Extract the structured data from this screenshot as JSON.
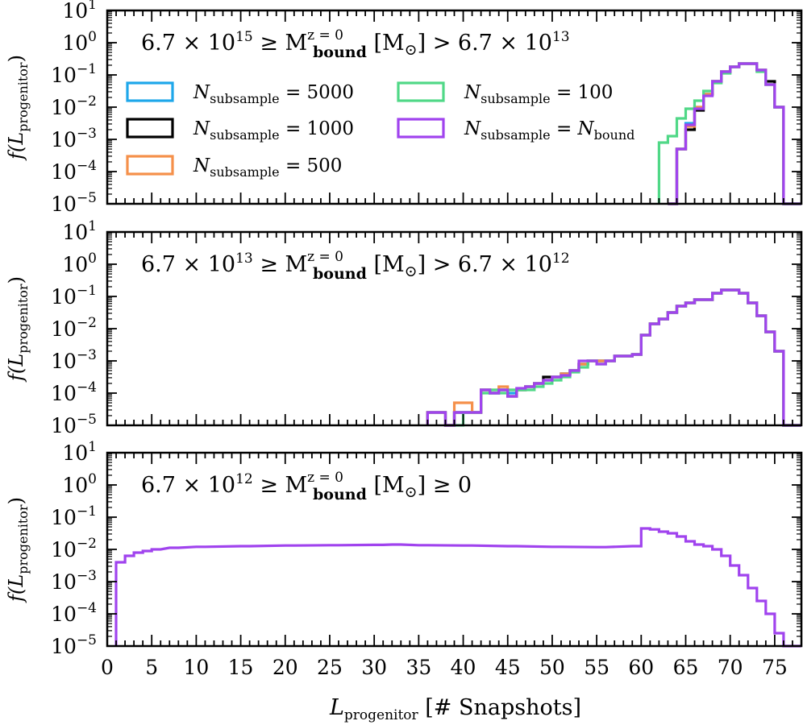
{
  "chart_data": {
    "type": "step-histogram",
    "xlabel": {
      "main": "L",
      "sub": "progenitor",
      "suffix": " [# Snapshots]"
    },
    "ylabel": {
      "pre": "f(L",
      "sub": "progenitor",
      "post": ")"
    },
    "xlim": [
      0,
      78
    ],
    "xticks": [
      0,
      5,
      10,
      15,
      20,
      25,
      30,
      35,
      40,
      45,
      50,
      55,
      60,
      65,
      70,
      75
    ],
    "ylim_log10": [
      -5,
      1
    ],
    "yticks": [
      {
        "base": "10",
        "exp": "1"
      },
      {
        "base": "10",
        "exp": "0"
      },
      {
        "base": "10",
        "exp": "−1"
      },
      {
        "base": "10",
        "exp": "−2"
      },
      {
        "base": "10",
        "exp": "−3"
      },
      {
        "base": "10",
        "exp": "−4"
      },
      {
        "base": "10",
        "exp": "−5"
      }
    ],
    "legend": [
      {
        "name": "5000",
        "color": "#1ea7ea"
      },
      {
        "name": "1000",
        "color": "#000000"
      },
      {
        "name": "500",
        "color": "#f5904a"
      },
      {
        "name": "100",
        "color": "#50d887"
      },
      {
        "name": "bound",
        "color": "#a043ee"
      }
    ],
    "legend_label": {
      "pre": "N",
      "sub": "subsample",
      "eq": " = ",
      "last_pre": "N",
      "last_sub": "bound"
    },
    "panels": [
      {
        "title": {
          "left": "6.7 × 10",
          "left_exp": "15",
          "mid": " ≥ M",
          "mid_sup": "z = 0",
          "mid_sub": "bound",
          "unit": " [M",
          "sun": "⊙",
          "unit_close": "]",
          "right": " > 6.7 × 10",
          "right_exp": "13"
        },
        "series": [
          {
            "name": "5000",
            "color": "#1ea7ea",
            "x": [
              63,
              64,
              65,
              66,
              67,
              68,
              69,
              70,
              71,
              72,
              73,
              74,
              75,
              76,
              77
            ],
            "log10": [
              -5,
              -3.3,
              -2.5,
              -2.0,
              -1.6,
              -1.2,
              -0.9,
              -0.75,
              -0.65,
              -0.65,
              -0.85,
              -1.3,
              -2.0,
              -5,
              -5
            ]
          },
          {
            "name": "1000",
            "color": "#000000",
            "x": [
              63,
              64,
              65,
              66,
              67,
              68,
              69,
              70,
              71,
              72,
              73,
              74,
              75,
              76,
              77
            ],
            "log10": [
              -5,
              -3.3,
              -2.7,
              -2.1,
              -1.6,
              -1.2,
              -0.9,
              -0.75,
              -0.65,
              -0.65,
              -0.85,
              -1.2,
              -2.0,
              -5,
              -5
            ]
          },
          {
            "name": "500",
            "color": "#f5904a",
            "x": [
              63,
              64,
              65,
              66,
              67,
              68,
              69,
              70,
              71,
              72,
              73,
              74,
              75,
              76,
              77
            ],
            "log10": [
              -5,
              -3.3,
              -2.6,
              -2.0,
              -1.6,
              -1.2,
              -0.9,
              -0.75,
              -0.65,
              -0.65,
              -0.85,
              -1.3,
              -2.0,
              -5,
              -5
            ]
          },
          {
            "name": "100",
            "color": "#50d887",
            "x": [
              62,
              63,
              64,
              65,
              66,
              67,
              68,
              69,
              70,
              71,
              72,
              73,
              74,
              75,
              76,
              77
            ],
            "log10": [
              -3.1,
              -2.9,
              -2.35,
              -2.05,
              -1.8,
              -1.5,
              -1.25,
              -0.95,
              -0.75,
              -0.65,
              -0.65,
              -0.9,
              -1.3,
              -2.0,
              -5,
              -5
            ]
          },
          {
            "name": "bound",
            "color": "#a043ee",
            "x": [
              63,
              64,
              65,
              66,
              67,
              68,
              69,
              70,
              71,
              72,
              73,
              74,
              75,
              76,
              77
            ],
            "log10": [
              -5,
              -3.3,
              -2.55,
              -2.05,
              -1.65,
              -1.2,
              -0.9,
              -0.75,
              -0.65,
              -0.65,
              -0.85,
              -1.3,
              -2.0,
              -5,
              -5
            ]
          }
        ]
      },
      {
        "title": {
          "left": "6.7 × 10",
          "left_exp": "13",
          "mid": " ≥ M",
          "mid_sup": "z = 0",
          "mid_sub": "bound",
          "unit": " [M",
          "sun": "⊙",
          "unit_close": "]",
          "right": " > 6.7 × 10",
          "right_exp": "12"
        },
        "series": [
          {
            "name": "5000",
            "color": "#1ea7ea",
            "x": [
              36,
              37,
              38,
              39,
              40,
              41,
              42,
              43,
              44,
              45,
              46,
              47,
              48,
              49,
              50,
              51,
              52,
              53,
              54,
              55,
              56,
              57,
              58,
              59,
              60,
              61,
              62,
              63,
              64,
              65,
              66,
              67,
              68,
              69,
              70,
              71,
              72,
              73,
              74,
              75,
              76,
              77
            ],
            "log10": [
              -4.6,
              -4.6,
              -5,
              -4.6,
              -4.6,
              -4.6,
              -3.9,
              -4.0,
              -3.9,
              -4.0,
              -3.9,
              -3.8,
              -3.7,
              -3.6,
              -3.5,
              -3.4,
              -3.3,
              -3.1,
              -3.0,
              -3.0,
              -3.0,
              -2.85,
              -2.85,
              -2.8,
              -2.2,
              -1.85,
              -1.7,
              -1.5,
              -1.3,
              -1.2,
              -1.1,
              -1.1,
              -0.9,
              -0.8,
              -0.8,
              -0.9,
              -1.2,
              -1.6,
              -2.1,
              -2.7,
              -5,
              -5
            ]
          },
          {
            "name": "1000",
            "color": "#000000",
            "x": [
              36,
              37,
              38,
              39,
              40,
              41,
              42,
              43,
              44,
              45,
              46,
              47,
              48,
              49,
              50,
              51,
              52,
              53,
              54,
              55,
              56,
              57,
              58,
              59,
              60,
              61,
              62,
              63,
              64,
              65,
              66,
              67,
              68,
              69,
              70,
              71,
              72,
              73,
              74,
              75,
              76,
              77
            ],
            "log10": [
              -4.6,
              -4.6,
              -5,
              -4.6,
              -4.6,
              -4.6,
              -3.9,
              -4.0,
              -3.9,
              -4.1,
              -3.9,
              -3.8,
              -3.7,
              -3.5,
              -3.5,
              -3.4,
              -3.3,
              -3.1,
              -3.0,
              -3.0,
              -3.0,
              -2.85,
              -2.85,
              -2.8,
              -2.2,
              -1.85,
              -1.7,
              -1.5,
              -1.3,
              -1.2,
              -1.1,
              -1.1,
              -0.9,
              -0.8,
              -0.8,
              -0.9,
              -1.2,
              -1.6,
              -2.1,
              -2.7,
              -5,
              -5
            ]
          },
          {
            "name": "500",
            "color": "#f5904a",
            "x": [
              36,
              37,
              38,
              39,
              40,
              41,
              42,
              43,
              44,
              45,
              46,
              47,
              48,
              49,
              50,
              51,
              52,
              53,
              54,
              55,
              56,
              57,
              58,
              59,
              60,
              61,
              62,
              63,
              64,
              65,
              66,
              67,
              68,
              69,
              70,
              71,
              72,
              73,
              74,
              75,
              76,
              77
            ],
            "log10": [
              -4.6,
              -4.6,
              -5,
              -4.3,
              -4.3,
              -4.6,
              -3.9,
              -3.9,
              -3.8,
              -3.9,
              -3.9,
              -3.8,
              -3.7,
              -3.6,
              -3.5,
              -3.4,
              -3.3,
              -3.1,
              -3.0,
              -3.0,
              -3.0,
              -2.85,
              -2.85,
              -2.8,
              -2.2,
              -1.85,
              -1.7,
              -1.5,
              -1.3,
              -1.2,
              -1.1,
              -1.1,
              -0.9,
              -0.8,
              -0.8,
              -0.9,
              -1.2,
              -1.6,
              -2.1,
              -2.7,
              -5,
              -5
            ]
          },
          {
            "name": "100",
            "color": "#50d887",
            "x": [
              39,
              40,
              41,
              42,
              43,
              44,
              45,
              46,
              47,
              48,
              49,
              50,
              51,
              52,
              53,
              54,
              55,
              56,
              57,
              58,
              59,
              60,
              61,
              62,
              63,
              64,
              65,
              66,
              67,
              68,
              69,
              70,
              71,
              72,
              73,
              74,
              75,
              76,
              77
            ],
            "log10": [
              -5,
              -4.6,
              -4.6,
              -4.0,
              -3.9,
              -4.0,
              -3.9,
              -3.9,
              -3.9,
              -3.8,
              -3.7,
              -3.6,
              -3.5,
              -3.35,
              -3.2,
              -3.0,
              -3.1,
              -3.0,
              -2.85,
              -2.85,
              -2.8,
              -2.2,
              -1.85,
              -1.7,
              -1.5,
              -1.3,
              -1.2,
              -1.1,
              -1.1,
              -0.9,
              -0.8,
              -0.8,
              -0.9,
              -1.2,
              -1.6,
              -2.1,
              -2.7,
              -5,
              -5
            ]
          },
          {
            "name": "bound",
            "color": "#a043ee",
            "x": [
              36,
              37,
              38,
              39,
              40,
              41,
              42,
              43,
              44,
              45,
              46,
              47,
              48,
              49,
              50,
              51,
              52,
              53,
              54,
              55,
              56,
              57,
              58,
              59,
              60,
              61,
              62,
              63,
              64,
              65,
              66,
              67,
              68,
              69,
              70,
              71,
              72,
              73,
              74,
              75,
              76,
              77
            ],
            "log10": [
              -4.6,
              -4.6,
              -5,
              -4.6,
              -4.6,
              -4.6,
              -3.9,
              -4.0,
              -3.9,
              -4.1,
              -3.85,
              -3.8,
              -3.7,
              -3.6,
              -3.5,
              -3.45,
              -3.3,
              -3.0,
              -3.0,
              -3.1,
              -3.0,
              -2.85,
              -2.85,
              -2.8,
              -2.2,
              -1.85,
              -1.7,
              -1.5,
              -1.3,
              -1.2,
              -1.1,
              -1.1,
              -0.9,
              -0.8,
              -0.8,
              -0.9,
              -1.2,
              -1.6,
              -2.1,
              -2.7,
              -5,
              -5
            ]
          }
        ]
      },
      {
        "title": {
          "left": "6.7 × 10",
          "left_exp": "12",
          "mid": " ≥ M",
          "mid_sup": "z = 0",
          "mid_sub": "bound",
          "unit": " [M",
          "sun": "⊙",
          "unit_close": "]",
          "right": " ≥ 0",
          "right_exp": ""
        },
        "series": [
          {
            "name": "bound",
            "color": "#a043ee",
            "x": [
              1,
              2,
              3,
              4,
              5,
              7,
              10,
              15,
              20,
              25,
              30,
              32,
              35,
              40,
              45,
              50,
              55,
              59,
              60,
              61,
              62,
              63,
              64,
              65,
              66,
              67,
              68,
              69,
              70,
              71,
              72,
              73,
              74,
              75,
              76,
              77
            ],
            "log10": [
              -2.4,
              -2.2,
              -2.1,
              -2.05,
              -2.0,
              -1.95,
              -1.92,
              -1.9,
              -1.88,
              -1.87,
              -1.86,
              -1.85,
              -1.87,
              -1.88,
              -1.9,
              -1.92,
              -1.93,
              -1.9,
              -1.35,
              -1.38,
              -1.45,
              -1.5,
              -1.6,
              -1.75,
              -1.85,
              -1.9,
              -2.0,
              -2.2,
              -2.5,
              -2.8,
              -3.2,
              -3.6,
              -4.0,
              -4.6,
              -5,
              -5
            ]
          }
        ]
      }
    ]
  }
}
